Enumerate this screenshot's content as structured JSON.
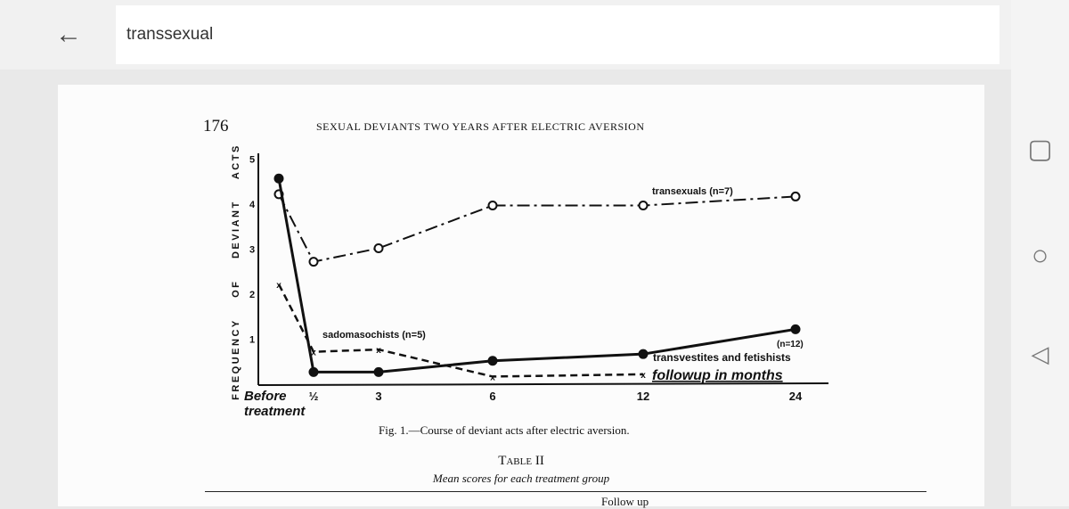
{
  "topbar": {
    "back_icon": "arrow-left-icon",
    "search_value": "transsexual"
  },
  "nav": {
    "icons": [
      "square-recents-icon",
      "circle-home-icon",
      "triangle-back-icon"
    ]
  },
  "page": {
    "page_number": "176",
    "running_head": "SEXUAL DEVIANTS TWO YEARS AFTER ELECTRIC AVERSION",
    "figure_caption": "Fig. 1.—Course of deviant acts after electric aversion.",
    "table_title": "Table II",
    "table_subtitle": "Mean scores for each treatment group",
    "table_partial": "Follow up"
  },
  "chart_data": {
    "type": "line",
    "ylabel": "FREQUENCY OF DEVIANT ACTS",
    "xlabel": "followup in months",
    "categories": [
      "Before treatment",
      "½",
      "3",
      "6",
      "12",
      "24"
    ],
    "yticks": [
      "1",
      "2",
      "3",
      "4",
      "5"
    ],
    "ylim": [
      0,
      5
    ],
    "series": [
      {
        "name": "transexuals (n=7)",
        "style": "dash-dot, open circles",
        "values": [
          4.2,
          2.7,
          3.0,
          3.95,
          3.95,
          4.15
        ]
      },
      {
        "name": "transvestites and fetishists (n=12)",
        "style": "solid, filled circles",
        "values": [
          4.55,
          0.25,
          0.25,
          0.5,
          0.65,
          1.2
        ]
      },
      {
        "name": "sadomasochists (n=5)",
        "style": "dashed, x markers",
        "values": [
          2.2,
          0.7,
          0.75,
          0.15,
          0.2,
          null
        ]
      }
    ]
  }
}
